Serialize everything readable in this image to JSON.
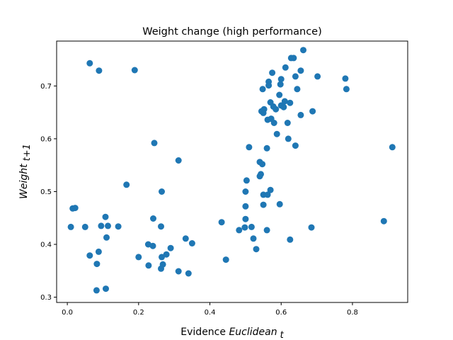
{
  "chart_data": {
    "type": "scatter",
    "title": "Weight change (high performance)",
    "xlabel": {
      "main": "Evidence ",
      "italic": "Euclidean",
      "sub": "t"
    },
    "ylabel": {
      "italic": "Weight",
      "sub": "t+1"
    },
    "xlim": [
      -0.03,
      0.955
    ],
    "ylim": [
      0.29,
      0.785
    ],
    "xticks": [
      0.0,
      0.2,
      0.4,
      0.6,
      0.8
    ],
    "xtick_labels": [
      "0.0",
      "0.2",
      "0.4",
      "0.6",
      "0.8"
    ],
    "yticks": [
      0.3,
      0.4,
      0.5,
      0.6,
      0.7
    ],
    "ytick_labels": [
      "0.3",
      "0.4",
      "0.5",
      "0.6",
      "0.7"
    ],
    "grid": false,
    "marker_color": "#1f77b4",
    "points": [
      [
        0.063,
        0.743
      ],
      [
        0.089,
        0.729
      ],
      [
        0.189,
        0.73
      ],
      [
        0.01,
        0.433
      ],
      [
        0.015,
        0.468
      ],
      [
        0.022,
        0.469
      ],
      [
        0.05,
        0.433
      ],
      [
        0.063,
        0.379
      ],
      [
        0.083,
        0.363
      ],
      [
        0.088,
        0.386
      ],
      [
        0.082,
        0.313
      ],
      [
        0.095,
        0.435
      ],
      [
        0.107,
        0.452
      ],
      [
        0.11,
        0.413
      ],
      [
        0.114,
        0.435
      ],
      [
        0.108,
        0.316
      ],
      [
        0.143,
        0.434
      ],
      [
        0.166,
        0.513
      ],
      [
        0.2,
        0.376
      ],
      [
        0.227,
        0.4
      ],
      [
        0.228,
        0.36
      ],
      [
        0.24,
        0.397
      ],
      [
        0.241,
        0.449
      ],
      [
        0.244,
        0.592
      ],
      [
        0.263,
        0.434
      ],
      [
        0.265,
        0.5
      ],
      [
        0.265,
        0.376
      ],
      [
        0.263,
        0.354
      ],
      [
        0.268,
        0.362
      ],
      [
        0.278,
        0.381
      ],
      [
        0.29,
        0.393
      ],
      [
        0.312,
        0.559
      ],
      [
        0.312,
        0.349
      ],
      [
        0.332,
        0.411
      ],
      [
        0.34,
        0.345
      ],
      [
        0.35,
        0.402
      ],
      [
        0.433,
        0.442
      ],
      [
        0.445,
        0.371
      ],
      [
        0.482,
        0.427
      ],
      [
        0.498,
        0.432
      ],
      [
        0.5,
        0.448
      ],
      [
        0.5,
        0.472
      ],
      [
        0.5,
        0.5
      ],
      [
        0.503,
        0.521
      ],
      [
        0.51,
        0.584
      ],
      [
        0.517,
        0.433
      ],
      [
        0.522,
        0.411
      ],
      [
        0.53,
        0.391
      ],
      [
        0.54,
        0.529
      ],
      [
        0.54,
        0.556
      ],
      [
        0.543,
        0.533
      ],
      [
        0.547,
        0.552
      ],
      [
        0.55,
        0.475
      ],
      [
        0.55,
        0.494
      ],
      [
        0.56,
        0.427
      ],
      [
        0.56,
        0.582
      ],
      [
        0.57,
        0.503
      ],
      [
        0.562,
        0.494
      ],
      [
        0.596,
        0.476
      ],
      [
        0.625,
        0.409
      ],
      [
        0.685,
        0.432
      ],
      [
        0.55,
        0.649
      ],
      [
        0.548,
        0.694
      ],
      [
        0.552,
        0.656
      ],
      [
        0.562,
        0.636
      ],
      [
        0.565,
        0.708
      ],
      [
        0.565,
        0.701
      ],
      [
        0.57,
        0.669
      ],
      [
        0.572,
        0.638
      ],
      [
        0.575,
        0.725
      ],
      [
        0.578,
        0.661
      ],
      [
        0.585,
        0.656
      ],
      [
        0.588,
        0.609
      ],
      [
        0.595,
        0.683
      ],
      [
        0.598,
        0.703
      ],
      [
        0.6,
        0.663
      ],
      [
        0.607,
        0.66
      ],
      [
        0.61,
        0.671
      ],
      [
        0.612,
        0.735
      ],
      [
        0.618,
        0.63
      ],
      [
        0.62,
        0.6
      ],
      [
        0.625,
        0.668
      ],
      [
        0.628,
        0.753
      ],
      [
        0.635,
        0.753
      ],
      [
        0.64,
        0.718
      ],
      [
        0.64,
        0.587
      ],
      [
        0.645,
        0.694
      ],
      [
        0.655,
        0.729
      ],
      [
        0.655,
        0.645
      ],
      [
        0.662,
        0.768
      ],
      [
        0.688,
        0.652
      ],
      [
        0.702,
        0.718
      ],
      [
        0.78,
        0.714
      ],
      [
        0.783,
        0.694
      ],
      [
        0.888,
        0.444
      ],
      [
        0.912,
        0.584
      ],
      [
        0.545,
        0.652
      ],
      [
        0.58,
        0.63
      ],
      [
        0.6,
        0.713
      ]
    ]
  }
}
